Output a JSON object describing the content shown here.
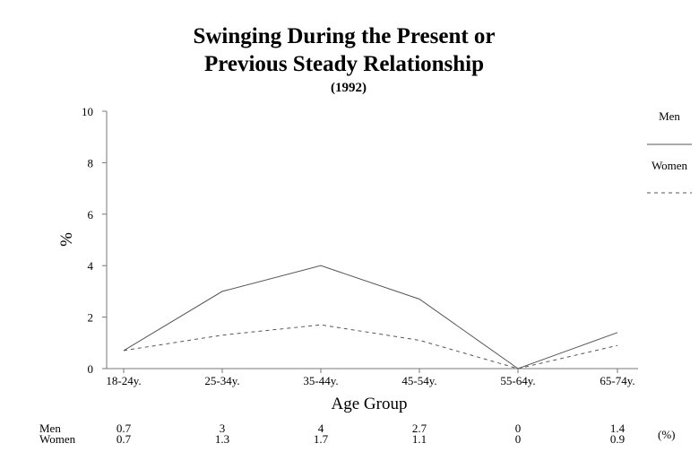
{
  "chart_data": {
    "type": "line",
    "title_line1": "Swinging During the Present or",
    "title_line2": "Previous Steady Relationship",
    "subtitle": "(1992)",
    "xlabel": "Age Group",
    "ylabel": "%",
    "ylim": [
      0,
      10
    ],
    "yticks": [
      "0",
      "2",
      "4",
      "6",
      "8",
      "10"
    ],
    "categories": [
      "18-24y.",
      "25-34y.",
      "35-44y.",
      "45-54y.",
      "55-64y.",
      "65-74y."
    ],
    "series": [
      {
        "name": "Men",
        "values": [
          0.7,
          3,
          4,
          2.7,
          0,
          1.4
        ],
        "value_labels": [
          "0.7",
          "3",
          "4",
          "2.7",
          "0",
          "1.4"
        ],
        "style": "solid",
        "color": "#555555"
      },
      {
        "name": "Women",
        "values": [
          0.7,
          1.3,
          1.7,
          1.1,
          0,
          0.9
        ],
        "value_labels": [
          "0.7",
          "1.3",
          "1.7",
          "1.1",
          "0",
          "0.9"
        ],
        "style": "dashed",
        "color": "#555555"
      }
    ],
    "table_unit": "(%)",
    "legend_position": "right",
    "grid": false
  }
}
